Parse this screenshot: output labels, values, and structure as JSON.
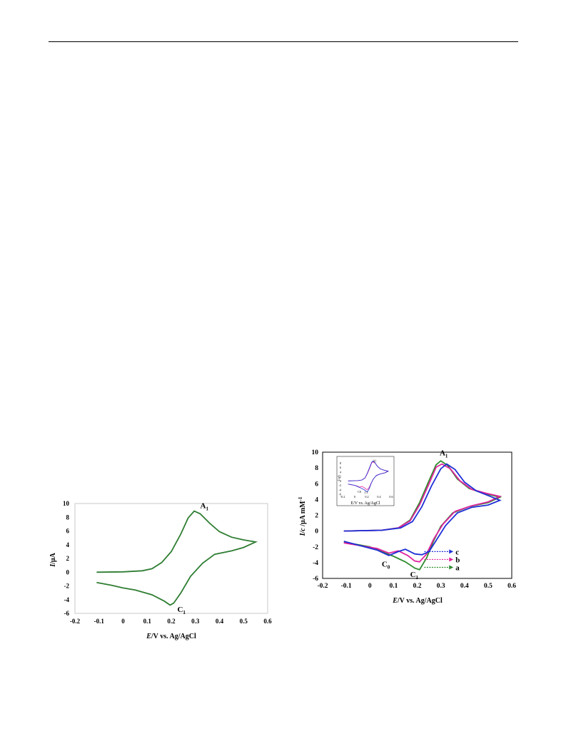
{
  "chart_data": [
    {
      "type": "line",
      "xlabel_italic": "E",
      "xlabel_rest": "/V vs. Ag/AgCl",
      "ylabel_italic": "I",
      "ylabel_rest": "/μA",
      "xlim": [
        -0.2,
        0.6
      ],
      "ylim": [
        -6,
        10
      ],
      "xticks": [
        "-0.2",
        "-0.1",
        "0",
        "0.1",
        "0.2",
        "0.3",
        "0.4",
        "0.5",
        "0.6"
      ],
      "yticks": [
        "10",
        "8",
        "6",
        "4",
        "2",
        "0",
        "-2",
        "-4",
        "-6"
      ],
      "annotations": [
        {
          "main": "A",
          "sub": "1",
          "x": 0.32,
          "y": 9.3
        },
        {
          "main": "C",
          "sub": "1",
          "x": 0.225,
          "y": -5.8
        }
      ],
      "grid": false,
      "series": [
        {
          "color": "#2e7d32",
          "points": [
            [
              -0.11,
              0.0
            ],
            [
              0.0,
              0.05
            ],
            [
              0.08,
              0.2
            ],
            [
              0.12,
              0.5
            ],
            [
              0.16,
              1.4
            ],
            [
              0.2,
              3.0
            ],
            [
              0.24,
              5.6
            ],
            [
              0.27,
              7.9
            ],
            [
              0.295,
              8.9
            ],
            [
              0.32,
              8.5
            ],
            [
              0.36,
              7.1
            ],
            [
              0.4,
              5.9
            ],
            [
              0.45,
              5.1
            ],
            [
              0.5,
              4.7
            ],
            [
              0.55,
              4.4
            ],
            [
              0.5,
              3.6
            ],
            [
              0.45,
              3.1
            ],
            [
              0.38,
              2.6
            ],
            [
              0.33,
              1.3
            ],
            [
              0.28,
              -0.6
            ],
            [
              0.24,
              -3.0
            ],
            [
              0.21,
              -4.5
            ],
            [
              0.195,
              -4.8
            ],
            [
              0.17,
              -4.2
            ],
            [
              0.12,
              -3.3
            ],
            [
              0.05,
              -2.6
            ],
            [
              0.0,
              -2.3
            ],
            [
              -0.05,
              -1.9
            ],
            [
              -0.11,
              -1.5
            ]
          ]
        }
      ]
    },
    {
      "type": "line",
      "xlabel_italic": "E",
      "xlabel_rest": "/V vs. Ag/AgCl",
      "ylabel_italic": "I/c",
      "ylabel_rest": " /μA mM",
      "ylabel_sup": "-1",
      "xlim": [
        -0.2,
        0.6
      ],
      "ylim": [
        -6,
        10
      ],
      "xticks": [
        "-0.2",
        "-0.1",
        "0",
        "0.1",
        "0.2",
        "0.3",
        "0.4",
        "0.5",
        "0.6"
      ],
      "yticks": [
        "10",
        "8",
        "6",
        "4",
        "2",
        "0",
        "-2",
        "-4",
        "-6"
      ],
      "annotations": [
        {
          "main": "A",
          "sub": "1",
          "x": 0.295,
          "y": 9.6
        },
        {
          "main": "C",
          "sub": "0",
          "x": 0.05,
          "y": -4.5
        },
        {
          "main": "C",
          "sub": "1",
          "x": 0.17,
          "y": -5.8
        }
      ],
      "arrows": [
        {
          "label": "c",
          "color": "#1f2fd6",
          "y": -2.6
        },
        {
          "label": "b",
          "color": "#e0229e",
          "y": -3.6
        },
        {
          "label": "a",
          "color": "#2e8b2e",
          "y": -4.6
        }
      ],
      "grid": false,
      "series": [
        {
          "label": "a",
          "color": "#2e8b2e",
          "points": [
            [
              -0.11,
              0.0
            ],
            [
              0.05,
              0.1
            ],
            [
              0.12,
              0.4
            ],
            [
              0.17,
              1.4
            ],
            [
              0.21,
              3.6
            ],
            [
              0.25,
              6.4
            ],
            [
              0.28,
              8.4
            ],
            [
              0.3,
              8.9
            ],
            [
              0.33,
              8.3
            ],
            [
              0.37,
              6.6
            ],
            [
              0.42,
              5.4
            ],
            [
              0.48,
              4.8
            ],
            [
              0.55,
              4.3
            ],
            [
              0.5,
              3.6
            ],
            [
              0.42,
              3.1
            ],
            [
              0.35,
              2.3
            ],
            [
              0.3,
              0.6
            ],
            [
              0.27,
              -1.2
            ],
            [
              0.24,
              -3.4
            ],
            [
              0.21,
              -4.9
            ],
            [
              0.19,
              -4.7
            ],
            [
              0.15,
              -3.9
            ],
            [
              0.1,
              -3.2
            ],
            [
              0.05,
              -2.6
            ],
            [
              0.0,
              -2.0
            ],
            [
              -0.11,
              -1.4
            ]
          ]
        },
        {
          "label": "b",
          "color": "#e0229e",
          "points": [
            [
              -0.11,
              0.0
            ],
            [
              0.05,
              0.1
            ],
            [
              0.12,
              0.4
            ],
            [
              0.17,
              1.3
            ],
            [
              0.21,
              3.3
            ],
            [
              0.25,
              6.0
            ],
            [
              0.28,
              8.1
            ],
            [
              0.305,
              8.5
            ],
            [
              0.34,
              7.9
            ],
            [
              0.38,
              6.4
            ],
            [
              0.43,
              5.3
            ],
            [
              0.49,
              4.8
            ],
            [
              0.55,
              4.4
            ],
            [
              0.5,
              3.7
            ],
            [
              0.43,
              3.2
            ],
            [
              0.36,
              2.5
            ],
            [
              0.31,
              0.9
            ],
            [
              0.27,
              -1.0
            ],
            [
              0.24,
              -2.9
            ],
            [
              0.21,
              -3.9
            ],
            [
              0.19,
              -3.8
            ],
            [
              0.16,
              -3.1
            ],
            [
              0.12,
              -2.5
            ],
            [
              0.08,
              -2.8
            ],
            [
              0.03,
              -2.2
            ],
            [
              -0.11,
              -1.5
            ]
          ]
        },
        {
          "label": "c",
          "color": "#1f2fd6",
          "points": [
            [
              -0.11,
              0.0
            ],
            [
              0.05,
              0.1
            ],
            [
              0.13,
              0.4
            ],
            [
              0.18,
              1.2
            ],
            [
              0.22,
              3.1
            ],
            [
              0.26,
              5.7
            ],
            [
              0.3,
              7.9
            ],
            [
              0.325,
              8.5
            ],
            [
              0.36,
              7.8
            ],
            [
              0.4,
              6.2
            ],
            [
              0.45,
              5.1
            ],
            [
              0.5,
              4.5
            ],
            [
              0.55,
              3.9
            ],
            [
              0.5,
              3.3
            ],
            [
              0.43,
              3.0
            ],
            [
              0.37,
              2.3
            ],
            [
              0.32,
              0.7
            ],
            [
              0.28,
              -1.2
            ],
            [
              0.25,
              -2.6
            ],
            [
              0.22,
              -3.0
            ],
            [
              0.19,
              -2.9
            ],
            [
              0.15,
              -2.3
            ],
            [
              0.12,
              -2.6
            ],
            [
              0.08,
              -3.1
            ],
            [
              0.03,
              -2.4
            ],
            [
              -0.11,
              -1.3
            ]
          ]
        }
      ],
      "inset": {
        "xticks": [
          "-0.2",
          "0",
          "0.2",
          "0.4",
          "0.6"
        ],
        "yticks": [
          "8",
          "6",
          "4",
          "2",
          "0",
          "-2",
          "-4",
          "-6"
        ],
        "xlabel": "E/V vs. Ag/AgCl",
        "ylabel": "I/μA",
        "labels": [
          "A1",
          "C0",
          "C1"
        ]
      }
    }
  ]
}
